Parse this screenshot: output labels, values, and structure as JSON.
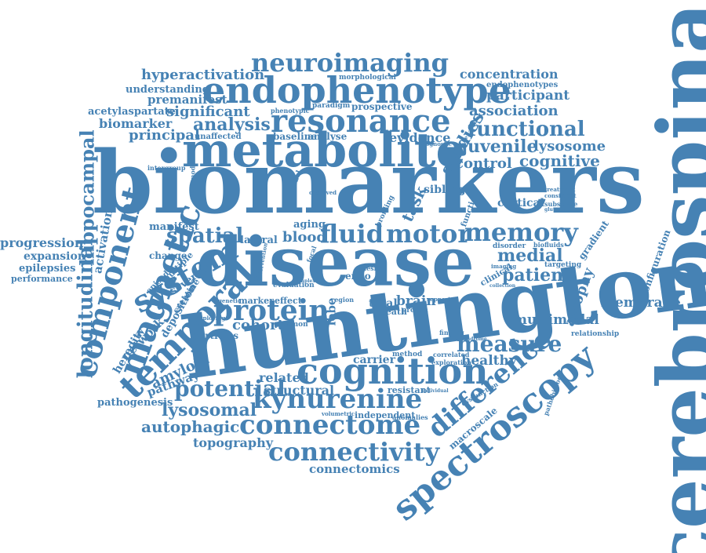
{
  "cloud": {
    "color": "#4682b4",
    "words": [
      "cerebrospinal",
      "biomarkers",
      "huntington",
      "disease",
      "metabolite",
      "endophenotype",
      "neuroimaging",
      "resonance",
      "cognition",
      "fluid",
      "motor",
      "memory",
      "protein",
      "spatial",
      "system",
      "magnetic",
      "temporal",
      "component",
      "longitudinal",
      "hippocampal",
      "spectroscopy",
      "difference",
      "connectome",
      "connectivity",
      "kynurenine",
      "measure",
      "potential",
      "lysosomal",
      "autophagic",
      "patient",
      "medial",
      "functional",
      "juvenile",
      "lysosome",
      "cognitive",
      "control",
      "studies",
      "association",
      "participant",
      "concentration",
      "hyperactivation",
      "understanding",
      "premanifest",
      "acetylaspartate",
      "significant",
      "biomarker",
      "principal",
      "analysis",
      "baseline",
      "analyse",
      "evidence",
      "task",
      "blood",
      "manifest",
      "progression",
      "expansion",
      "epilepsies",
      "performance",
      "activation",
      "network",
      "amyloid",
      "pathway",
      "pathogenesis",
      "topography",
      "connectomics",
      "structural",
      "related",
      "cohort",
      "total",
      "brain",
      "atrophy",
      "membrane",
      "multimodal",
      "healthy",
      "carrier",
      "cortical",
      "sibling",
      "aging",
      "lateral",
      "change",
      "episodic",
      "multiple",
      "deposition",
      "heredity",
      "several",
      "creatine",
      "marker",
      "effect",
      "macroscale",
      "configuration",
      "gradient",
      "relationship",
      "morphological",
      "endophenotypes",
      "prospective",
      "paradigm",
      "phenotypic",
      "unaffected",
      "intergroup",
      "transmodal",
      "function",
      "profiling",
      "model",
      "observed",
      "plasmon",
      "corticies",
      "exploring",
      "resistant",
      "independent",
      "volumetric",
      "anomalies",
      "pathobiology",
      "dysfunction",
      "exploration",
      "correlated",
      "method",
      "finding",
      "syndrome",
      "clinical",
      "imaging",
      "targeting",
      "disorder",
      "collection",
      "biofluids",
      "treatment",
      "consistent",
      "substrate",
      "glutamate",
      "prognostic",
      "behavioral",
      "death",
      "proton",
      "region",
      "support",
      "genetic",
      "lobe",
      "endo",
      "lesion",
      "complex",
      "focal",
      "intervention",
      "evaluation",
      "individual"
    ]
  }
}
